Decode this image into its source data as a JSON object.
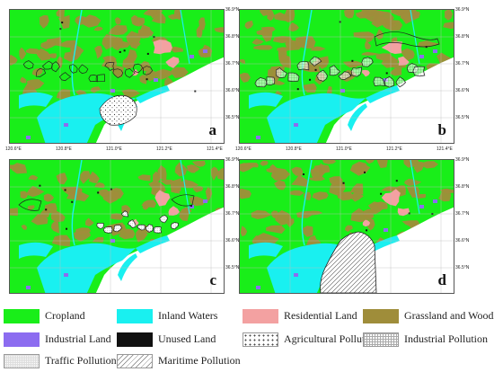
{
  "panels": [
    {
      "id": "a",
      "letter": "a",
      "pollution": "agricultural"
    },
    {
      "id": "b",
      "letter": "b",
      "pollution": "industrial"
    },
    {
      "id": "c",
      "letter": "c",
      "pollution": "traffic"
    },
    {
      "id": "d",
      "letter": "d",
      "pollution": "maritime"
    }
  ],
  "axes": {
    "lon_ticks": [
      "120.6°E",
      "120.8°E",
      "121.0°E",
      "121.2°E",
      "121.4°E"
    ],
    "lat_ticks": [
      "36.9°N",
      "36.8°N",
      "36.7°N",
      "36.6°N",
      "36.5°N"
    ]
  },
  "colors": {
    "cropland": "#19ee19",
    "inland_waters": "#19f0f0",
    "residential": "#f3a1a1",
    "grassland": "#9f8d3a",
    "industrial": "#8c6cf0",
    "unused": "#111111",
    "sea": "#ffffff"
  },
  "legend": {
    "items": [
      {
        "label": "Cropland",
        "color": "#19ee19",
        "pattern": "solid"
      },
      {
        "label": "Inland Waters",
        "color": "#19f0f0",
        "pattern": "solid"
      },
      {
        "label": "Residential Land",
        "color": "#f3a1a1",
        "pattern": "solid"
      },
      {
        "label": "Grassland and Woodland",
        "color": "#9f8d3a",
        "pattern": "solid"
      },
      {
        "label": "Industrial Land",
        "color": "#8c6cf0",
        "pattern": "solid"
      },
      {
        "label": "Unused Land",
        "color": "#111111",
        "pattern": "solid"
      },
      {
        "label": "Agricultural Pollution",
        "color": "#ffffff",
        "pattern": "dots"
      },
      {
        "label": "Industrial Pollution",
        "color": "#ffffff",
        "pattern": "grid"
      },
      {
        "label": "Traffic Pollution",
        "color": "#ffffff",
        "pattern": "fine"
      },
      {
        "label": "Maritime Pollution",
        "color": "#ffffff",
        "pattern": "hatch"
      }
    ]
  }
}
